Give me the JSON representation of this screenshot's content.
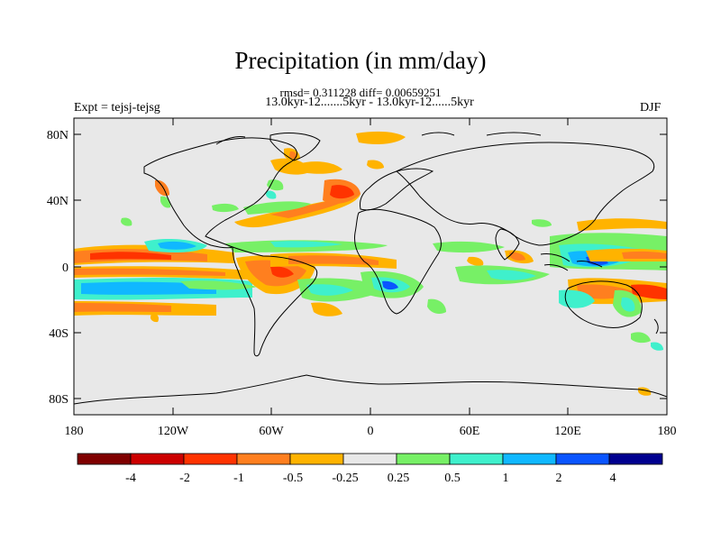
{
  "header": {
    "title": "Precipitation (in mm/day)",
    "stats": "rmsd= 0.311228 diff= 0.00659251",
    "periods": "13.0kyr-12.......5kyr - 13.0kyr-12......5kyr",
    "experiment": "Expt = tejsj-tejsg",
    "season": "DJF"
  },
  "axes": {
    "lat_ticks": [
      "80N",
      "40N",
      "0",
      "40S",
      "80S"
    ],
    "lon_ticks": [
      "180",
      "120W",
      "60W",
      "0",
      "60E",
      "120E",
      "180"
    ]
  },
  "colorbar": {
    "colors": [
      "#7f0000",
      "#cc0000",
      "#ff3300",
      "#ff7f1f",
      "#ffb300",
      "#e8e8e8",
      "#77f066",
      "#3ff0cc",
      "#10b8ff",
      "#0a55ff",
      "#00008f"
    ],
    "labels": [
      "-4",
      "-2",
      "-1",
      "-0.5",
      "-0.25",
      "0.25",
      "0.5",
      "1",
      "2",
      "4"
    ]
  },
  "palette": {
    "land_ocean_bg": "#e8e8e8",
    "frame": "#000000"
  }
}
